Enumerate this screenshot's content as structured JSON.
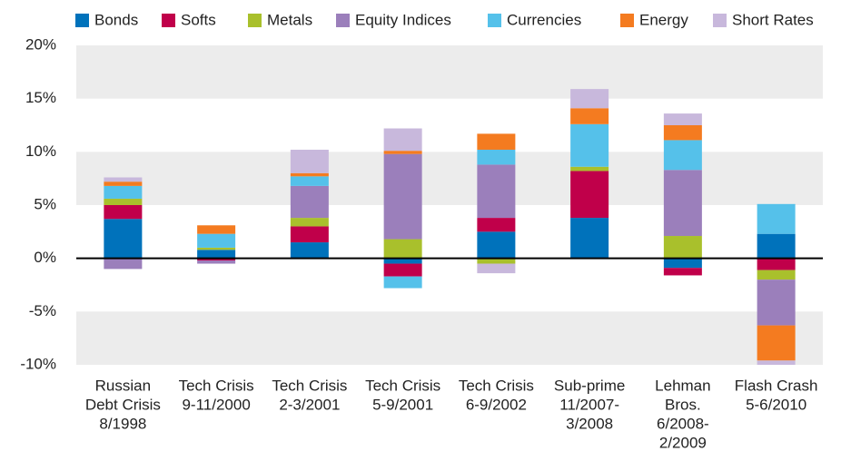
{
  "chart_data": {
    "type": "stacked-bar",
    "categories": [
      [
        "Russian",
        "Debt Crisis",
        "8/1998"
      ],
      [
        "Tech Crisis",
        "9-11/2000"
      ],
      [
        "Tech Crisis",
        "2-3/2001"
      ],
      [
        "Tech Crisis",
        "5-9/2001"
      ],
      [
        "Tech Crisis",
        "6-9/2002"
      ],
      [
        "Sub-prime",
        "11/2007-",
        "3/2008"
      ],
      [
        "Lehman",
        "Bros.",
        "6/2008-",
        "2/2009"
      ],
      [
        "Flash Crash",
        "5-6/2010"
      ]
    ],
    "series": [
      {
        "name": "Bonds",
        "color": "#0072bb",
        "values": [
          3.7,
          0.8,
          1.5,
          -0.5,
          2.5,
          3.8,
          -0.9,
          2.3
        ]
      },
      {
        "name": "Softs",
        "color": "#c0004a",
        "values": [
          1.3,
          -0.2,
          1.5,
          -1.2,
          1.3,
          4.4,
          -0.7,
          -1.1
        ]
      },
      {
        "name": "Metals",
        "color": "#a9c02c",
        "values": [
          0.6,
          0.2,
          0.8,
          1.8,
          -0.5,
          0.4,
          2.1,
          -0.9
        ]
      },
      {
        "name": "Equity Indices",
        "color": "#9b7fbb",
        "values": [
          -1.0,
          -0.3,
          3.0,
          8.0,
          5.0,
          0,
          6.2,
          -4.3
        ]
      },
      {
        "name": "Currencies",
        "color": "#55c1ea",
        "values": [
          1.2,
          1.3,
          0.9,
          -1.1,
          1.4,
          4.0,
          2.8,
          2.8
        ]
      },
      {
        "name": "Energy",
        "color": "#f47b20",
        "values": [
          0.4,
          0.8,
          0.3,
          0.3,
          1.5,
          1.5,
          1.4,
          -3.3
        ]
      },
      {
        "name": "Short Rates",
        "color": "#c8b8dc",
        "values": [
          0.4,
          0,
          2.2,
          2.1,
          -0.9,
          1.8,
          1.1,
          -0.4
        ]
      }
    ],
    "ylim": [
      -10,
      20
    ],
    "yticks": [
      {
        "value": -10,
        "label": "-10%"
      },
      {
        "value": -5,
        "label": "-5%"
      },
      {
        "value": 0,
        "label": "0%"
      },
      {
        "value": 5,
        "label": "5%"
      },
      {
        "value": 10,
        "label": "10%"
      },
      {
        "value": 15,
        "label": "15%"
      },
      {
        "value": 20,
        "label": "20%"
      }
    ]
  }
}
